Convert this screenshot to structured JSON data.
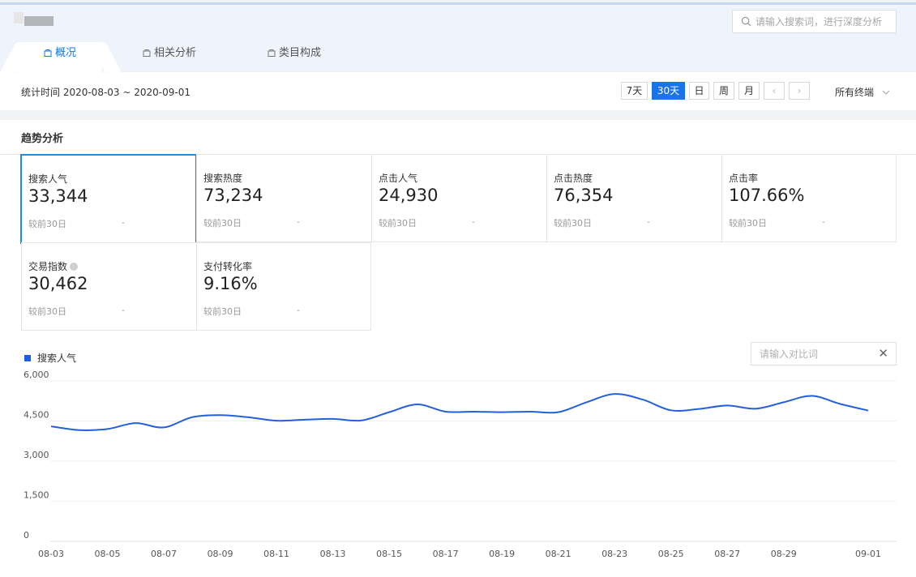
{
  "header": {
    "search_placeholder": "请输入搜索词，进行深度分析"
  },
  "tabs": [
    {
      "label": "概况",
      "active": true
    },
    {
      "label": "相关分析",
      "active": false
    },
    {
      "label": "类目构成",
      "active": false
    }
  ],
  "datebar": {
    "label": "统计时间 2020-08-03 ~ 2020-09-01",
    "ranges": [
      "7天",
      "30天",
      "日",
      "周",
      "月"
    ],
    "active_range": "30天",
    "prev": "‹",
    "next": "›",
    "terminal": "所有终端"
  },
  "section_title": "趋势分析",
  "metrics": [
    {
      "name": "搜索人气",
      "value": "33,344",
      "compare_label": "较前30日",
      "compare_value": "-"
    },
    {
      "name": "搜索热度",
      "value": "73,234",
      "compare_label": "较前30日",
      "compare_value": "-"
    },
    {
      "name": "点击人气",
      "value": "24,930",
      "compare_label": "较前30日",
      "compare_value": "-"
    },
    {
      "name": "点击热度",
      "value": "76,354",
      "compare_label": "较前30日",
      "compare_value": "-"
    },
    {
      "name": "点击率",
      "value": "107.66%",
      "compare_label": "较前30日",
      "compare_value": "-"
    },
    {
      "name": "交易指数",
      "value": "30,462",
      "compare_label": "较前30日",
      "compare_value": "-"
    },
    {
      "name": "支付转化率",
      "value": "9.16%",
      "compare_label": "较前30日",
      "compare_value": "-"
    }
  ],
  "compare": {
    "placeholder": "请输入对比词",
    "clear": "✕"
  },
  "colors": {
    "accent": "#1a73e8",
    "series": "#2460d8"
  },
  "chart_data": {
    "type": "line",
    "title": "",
    "xlabel": "",
    "ylabel": "",
    "ylim": [
      0,
      6000
    ],
    "yticks": [
      "0",
      "1,500",
      "3,000",
      "4,500",
      "6,000"
    ],
    "ytick_values": [
      0,
      1500,
      3000,
      4500,
      6000
    ],
    "x_tick_labels": [
      "08-03",
      "08-05",
      "08-07",
      "08-09",
      "08-11",
      "08-13",
      "08-15",
      "08-17",
      "08-19",
      "08-21",
      "08-23",
      "08-25",
      "08-27",
      "08-29",
      "09-01"
    ],
    "x": [
      "08-03",
      "08-04",
      "08-05",
      "08-06",
      "08-07",
      "08-08",
      "08-09",
      "08-10",
      "08-11",
      "08-12",
      "08-13",
      "08-14",
      "08-15",
      "08-16",
      "08-17",
      "08-18",
      "08-19",
      "08-20",
      "08-21",
      "08-22",
      "08-23",
      "08-24",
      "08-25",
      "08-26",
      "08-27",
      "08-28",
      "08-29",
      "08-30",
      "08-31",
      "09-01"
    ],
    "series": [
      {
        "name": "搜索人气",
        "values": [
          4300,
          4160,
          4200,
          4420,
          4260,
          4640,
          4720,
          4640,
          4510,
          4550,
          4580,
          4520,
          4830,
          5120,
          4850,
          4850,
          4830,
          4850,
          4830,
          5200,
          5510,
          5300,
          4900,
          4950,
          5080,
          4960,
          5200,
          5440,
          5140,
          4890
        ]
      }
    ],
    "grid": true,
    "legend": "top-left"
  }
}
